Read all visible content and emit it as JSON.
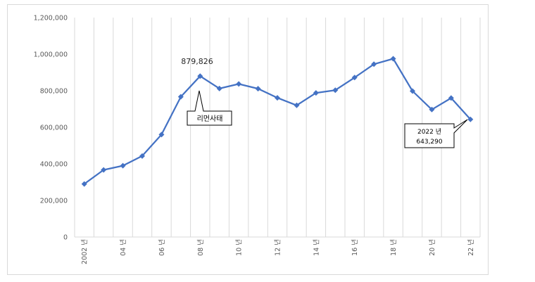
{
  "chart_data": {
    "type": "line",
    "title": "",
    "xlabel": "",
    "ylabel": "",
    "ylim": [
      0,
      1200000
    ],
    "y_ticks": [
      0,
      200000,
      400000,
      600000,
      800000,
      1000000,
      1200000
    ],
    "y_tick_labels": [
      "0",
      "200,000",
      "400,000",
      "600,000",
      "800,000",
      "1,000,000",
      "1,200,000"
    ],
    "grid": "vertical",
    "x": [
      2002,
      2003,
      2004,
      2005,
      2006,
      2007,
      2008,
      2009,
      2010,
      2011,
      2012,
      2013,
      2014,
      2015,
      2016,
      2017,
      2018,
      2019,
      2020,
      2021,
      2022
    ],
    "x_tick_labels": [
      "2002 년",
      "",
      "04 년",
      "",
      "06 년",
      "",
      "08 년",
      "",
      "10 년",
      "",
      "12 년",
      "",
      "14 년",
      "",
      "16 년",
      "",
      "18 년",
      "",
      "20 년",
      "",
      "22 년"
    ],
    "series": [
      {
        "color": "#4472c4",
        "values": [
          290000,
          367000,
          390000,
          443000,
          560000,
          767000,
          879826,
          812000,
          837000,
          811000,
          761000,
          720000,
          788000,
          803000,
          872000,
          945000,
          975000,
          798000,
          697000,
          760000,
          643290
        ]
      }
    ],
    "annotations": [
      {
        "label": "879,826"
      },
      {
        "label": "리먼사태"
      },
      {
        "lines": [
          "2022 년",
          "643,290"
        ]
      }
    ]
  }
}
